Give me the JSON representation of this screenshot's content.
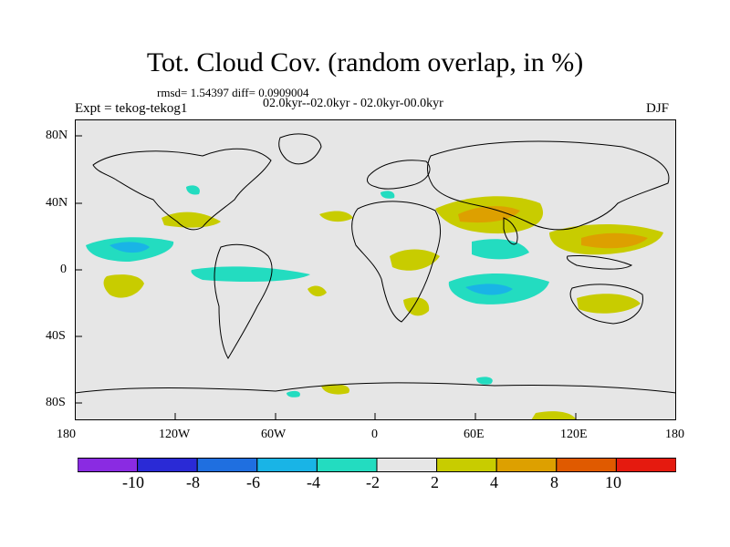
{
  "title": "Tot. Cloud Cov. (random overlap, in %)",
  "stats_line": "rmsd= 1.54397   diff= 0.0909004",
  "experiment": "Expt = tekog-tekog1",
  "period": "02.0kyr--02.0kyr - 02.0kyr-00.0kyr",
  "season": "DJF",
  "x_axis": {
    "tick_labels": [
      "180",
      "120W",
      "60W",
      "0",
      "60E",
      "120E",
      "180"
    ]
  },
  "y_axis": {
    "tick_labels": [
      "80N",
      "40N",
      "0",
      "40S",
      "80S"
    ]
  },
  "colorbar": {
    "tick_labels": [
      "-10",
      "-8",
      "-6",
      "-4",
      "-2",
      "2",
      "4",
      "8",
      "10"
    ],
    "colors": [
      "#8a2be2",
      "#2a2ad6",
      "#1f6fe0",
      "#19b4e6",
      "#23dcc0",
      "#e6e6e6",
      "#c8cc00",
      "#dda000",
      "#e05a00",
      "#e51a0f"
    ]
  },
  "colors": {
    "background": "#e6e6e6",
    "coastline": "#000000"
  }
}
